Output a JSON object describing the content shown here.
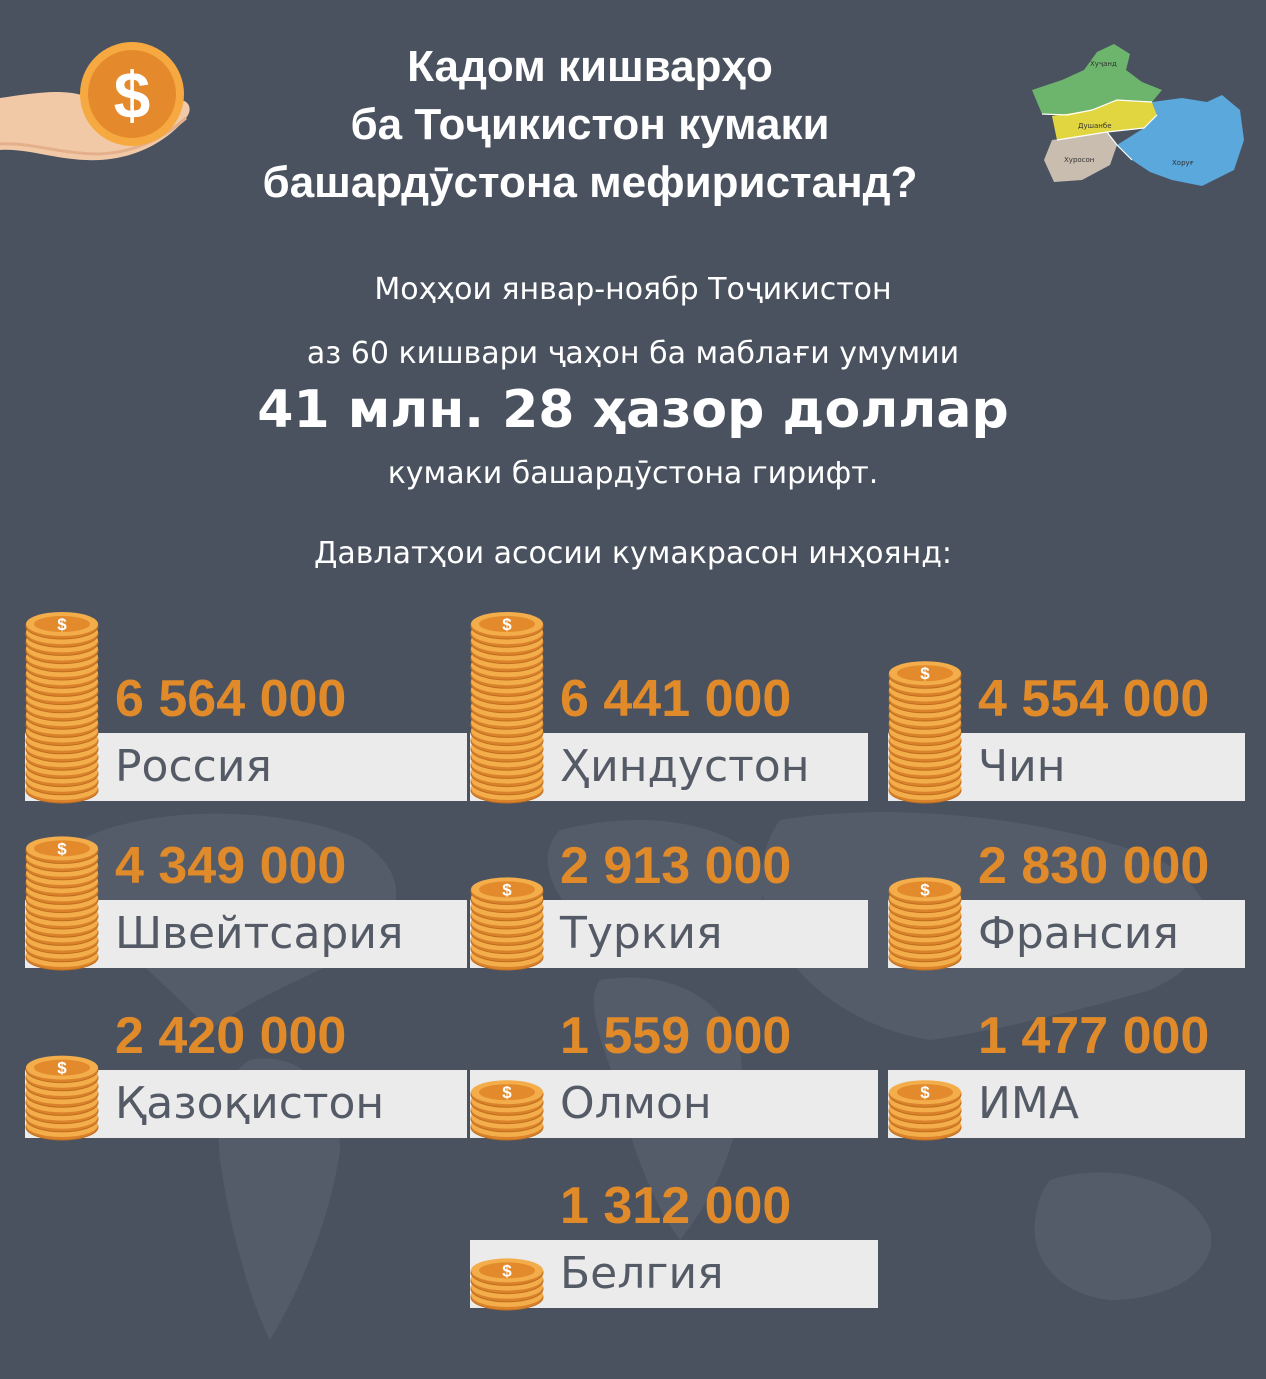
{
  "title_lines": [
    "Кадом кишварҳо",
    "ба Тоҷикистон кумаки",
    "башардӯстона мефиристанд?"
  ],
  "intro": {
    "line1": "Моҳҳои январ-ноябр Тоҷикистон",
    "line2": "аз 60 кишвари ҷаҳон ба маблағи умумии",
    "total": "41 млн. 28 ҳазор доллар",
    "line3": "кумаки башардӯстона гирифт.",
    "line4": "Давлатҳои асосии кумакрасон инҳоянд:"
  },
  "icons": {
    "hand": "hand-holding-coin-icon",
    "map": "tajikistan-regions-map-icon",
    "coin": "coin-stack-icon"
  },
  "colors": {
    "background": "#4a5260",
    "accent": "#e08a2a",
    "band": "#ebebeb",
    "country_text": "#555b66"
  },
  "map_labels": [
    "Хуҷанд",
    "Душанбе",
    "Хуросон",
    "Хоруғ"
  ],
  "chart_data": {
    "type": "bar",
    "title": "Кадом кишварҳо ба Тоҷикистон кумаки башардӯстона мефиристанд?",
    "unit": "доллар",
    "categories": [
      "Россия",
      "Ҳиндустон",
      "Чин",
      "Швейтсария",
      "Туркия",
      "Франсия",
      "Қазоқистон",
      "Олмон",
      "ИМА",
      "Белгия"
    ],
    "values": [
      6564000,
      6441000,
      4554000,
      4349000,
      2913000,
      2830000,
      2420000,
      1559000,
      1477000,
      1312000
    ],
    "value_labels": [
      "6 564 000",
      "6 441 000",
      "4 554 000",
      "4 349 000",
      "2 913 000",
      "2 830 000",
      "2 420 000",
      "1 559 000",
      "1 477 000",
      "1 312 000"
    ]
  }
}
